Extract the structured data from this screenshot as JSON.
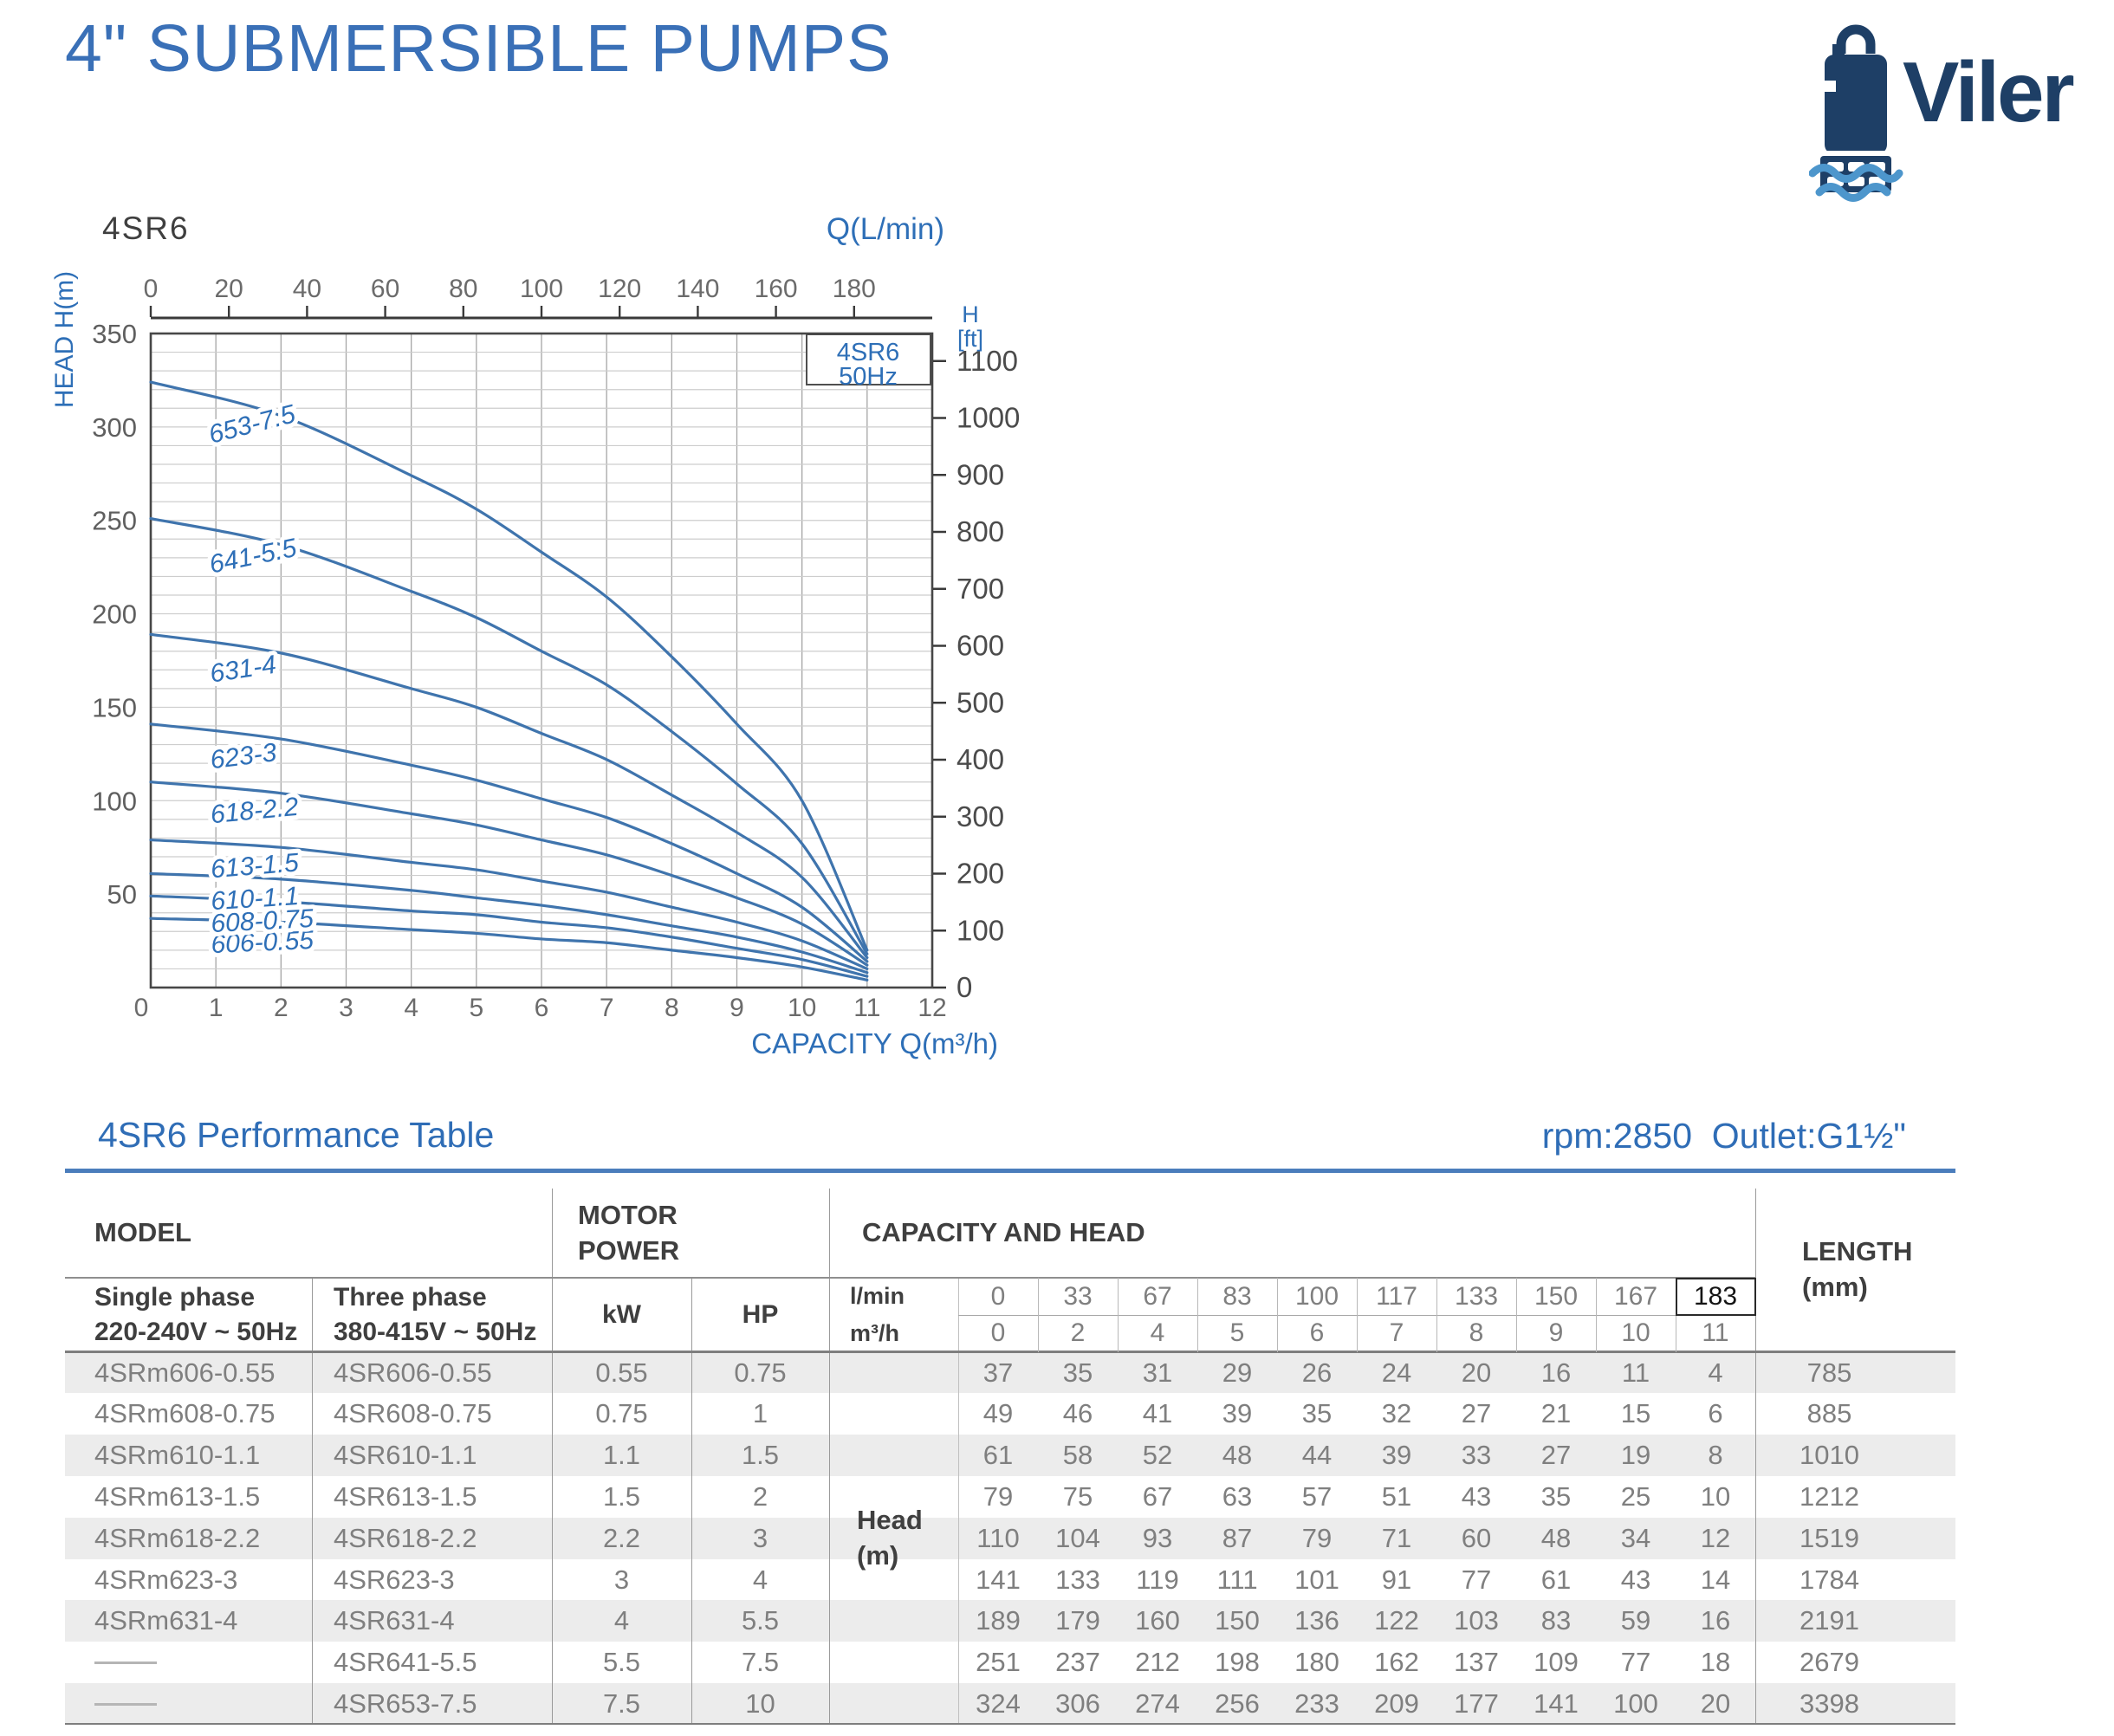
{
  "header": {
    "title": "4\" SUBMERSIBLE PUMPS",
    "brand": "Viler"
  },
  "chart": {
    "model_label": "4SR6",
    "top_axis_title": "Q(L/min)",
    "left_axis_title": "HEAD H(m)",
    "right_axis_title_line1": "H",
    "right_axis_title_line2": "[ft]",
    "bottom_axis_title": "CAPACITY Q(m³/h)",
    "legend_model": "4SR6",
    "legend_freq": "50Hz"
  },
  "chart_data": {
    "type": "line",
    "title": "4SR6 50Hz",
    "xlabel": "CAPACITY Q(m³/h)",
    "ylabel": "HEAD H(m)",
    "x_m3h": [
      0,
      2,
      4,
      5,
      6,
      7,
      8,
      9,
      10,
      11
    ],
    "series": [
      {
        "name": "606-0.55",
        "head_m": [
          37,
          35,
          31,
          29,
          26,
          24,
          20,
          16,
          11,
          4
        ]
      },
      {
        "name": "608-0.75",
        "head_m": [
          49,
          46,
          41,
          39,
          35,
          32,
          27,
          21,
          15,
          6
        ]
      },
      {
        "name": "610-1.1",
        "head_m": [
          61,
          58,
          52,
          48,
          44,
          39,
          33,
          27,
          19,
          8
        ]
      },
      {
        "name": "613-1.5",
        "head_m": [
          79,
          75,
          67,
          63,
          57,
          51,
          43,
          35,
          25,
          10
        ]
      },
      {
        "name": "618-2.2",
        "head_m": [
          110,
          104,
          93,
          87,
          79,
          71,
          60,
          48,
          34,
          12
        ]
      },
      {
        "name": "623-3",
        "head_m": [
          141,
          133,
          119,
          111,
          101,
          91,
          77,
          61,
          43,
          14
        ]
      },
      {
        "name": "631-4",
        "head_m": [
          189,
          179,
          160,
          150,
          136,
          122,
          103,
          83,
          59,
          16
        ]
      },
      {
        "name": "641-5.5",
        "head_m": [
          251,
          237,
          212,
          198,
          180,
          162,
          137,
          109,
          77,
          18
        ]
      },
      {
        "name": "653-7.5",
        "head_m": [
          324,
          306,
          274,
          256,
          233,
          209,
          177,
          141,
          100,
          20
        ]
      }
    ],
    "x_ticks_bottom_m3h": [
      0,
      1,
      2,
      3,
      4,
      5,
      6,
      7,
      8,
      9,
      10,
      11,
      12
    ],
    "x_ticks_top_lmin": [
      0,
      20,
      40,
      60,
      80,
      100,
      120,
      140,
      160,
      180
    ],
    "y_ticks_left_m": [
      350,
      300,
      250,
      200,
      150,
      100,
      50,
      0
    ],
    "y_ticks_right_ft": [
      1100,
      1000,
      900,
      800,
      700,
      600,
      500,
      400,
      300,
      200,
      100,
      0
    ],
    "xlim_m3h": [
      0,
      12
    ],
    "ylim_m": [
      0,
      350
    ],
    "grid": true,
    "legend_position": "top-right"
  },
  "colors": {
    "accent_blue": "#3a70b7",
    "navy": "#1e3f66",
    "wave_blue": "#4d96cc",
    "curve_blue": "#3f74ad",
    "chart_label_blue": "#2e6fb7",
    "stripe": "#ececec"
  },
  "table": {
    "title": "4SR6 Performance Table",
    "specs": "rpm:2850  Outlet:G1½\"",
    "headers": {
      "model": "MODEL",
      "motor_power": "MOTOR POWER",
      "capacity_head": "CAPACITY AND HEAD",
      "length_line1": "LENGTH",
      "length_line2": "(mm)",
      "single_phase_line1": "Single phase",
      "single_phase_line2": "220-240V ~ 50Hz",
      "three_phase_line1": "Three phase",
      "three_phase_line2": "380-415V ~ 50Hz",
      "kw": "kW",
      "hp": "HP",
      "lmin": "l/min",
      "m3h": "m³/h",
      "head_line1": "Head",
      "head_line2": "(m)"
    },
    "lmin_values": [
      "0",
      "33",
      "67",
      "83",
      "100",
      "117",
      "133",
      "150",
      "167",
      "183"
    ],
    "m3h_values": [
      "0",
      "2",
      "4",
      "5",
      "6",
      "7",
      "8",
      "9",
      "10",
      "11"
    ],
    "highlight_lmin_value": "183",
    "rows": [
      {
        "single": "4SRm606-0.55",
        "three": "4SR606-0.55",
        "kw": "0.55",
        "hp": "0.75",
        "head": [
          "37",
          "35",
          "31",
          "29",
          "26",
          "24",
          "20",
          "16",
          "11",
          "4"
        ],
        "length": "785"
      },
      {
        "single": "4SRm608-0.75",
        "three": "4SR608-0.75",
        "kw": "0.75",
        "hp": "1",
        "head": [
          "49",
          "46",
          "41",
          "39",
          "35",
          "32",
          "27",
          "21",
          "15",
          "6"
        ],
        "length": "885"
      },
      {
        "single": "4SRm610-1.1",
        "three": "4SR610-1.1",
        "kw": "1.1",
        "hp": "1.5",
        "head": [
          "61",
          "58",
          "52",
          "48",
          "44",
          "39",
          "33",
          "27",
          "19",
          "8"
        ],
        "length": "1010"
      },
      {
        "single": "4SRm613-1.5",
        "three": "4SR613-1.5",
        "kw": "1.5",
        "hp": "2",
        "head": [
          "79",
          "75",
          "67",
          "63",
          "57",
          "51",
          "43",
          "35",
          "25",
          "10"
        ],
        "length": "1212"
      },
      {
        "single": "4SRm618-2.2",
        "three": "4SR618-2.2",
        "kw": "2.2",
        "hp": "3",
        "head": [
          "110",
          "104",
          "93",
          "87",
          "79",
          "71",
          "60",
          "48",
          "34",
          "12"
        ],
        "length": "1519"
      },
      {
        "single": "4SRm623-3",
        "three": "4SR623-3",
        "kw": "3",
        "hp": "4",
        "head": [
          "141",
          "133",
          "119",
          "111",
          "101",
          "91",
          "77",
          "61",
          "43",
          "14"
        ],
        "length": "1784"
      },
      {
        "single": "4SRm631-4",
        "three": "4SR631-4",
        "kw": "4",
        "hp": "5.5",
        "head": [
          "189",
          "179",
          "160",
          "150",
          "136",
          "122",
          "103",
          "83",
          "59",
          "16"
        ],
        "length": "2191"
      },
      {
        "single": "",
        "three": "4SR641-5.5",
        "kw": "5.5",
        "hp": "7.5",
        "head": [
          "251",
          "237",
          "212",
          "198",
          "180",
          "162",
          "137",
          "109",
          "77",
          "18"
        ],
        "length": "2679"
      },
      {
        "single": "",
        "three": "4SR653-7.5",
        "kw": "7.5",
        "hp": "10",
        "head": [
          "324",
          "306",
          "274",
          "256",
          "233",
          "209",
          "177",
          "141",
          "100",
          "20"
        ],
        "length": "3398"
      }
    ]
  }
}
